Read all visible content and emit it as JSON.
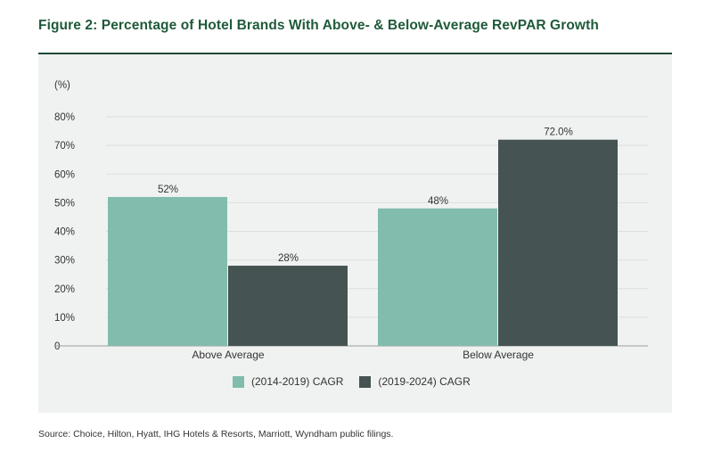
{
  "title": "Figure 2: Percentage of Hotel Brands With Above- & Below-Average RevPAR Growth",
  "source": "Source: Choice, Hilton, Hyatt, IHG Hotels & Resorts, Marriott, Wyndham public filings.",
  "colors": {
    "series_1": "#82bcad",
    "series_2": "#455352",
    "title": "#1f5a3a"
  },
  "chart_data": {
    "type": "bar",
    "title": "Figure 2: Percentage of Hotel Brands With Above- & Below-Average RevPAR Growth",
    "ylabel": "(%)",
    "xlabel": "",
    "ylim": [
      0,
      80
    ],
    "y_ticks": [
      "0",
      "10%",
      "20%",
      "30%",
      "40%",
      "50%",
      "60%",
      "70%",
      "80%"
    ],
    "y_tick_values": [
      0,
      10,
      20,
      30,
      40,
      50,
      60,
      70,
      80
    ],
    "categories": [
      "Above Average",
      "Below Average"
    ],
    "series": [
      {
        "name": "(2014-2019) CAGR",
        "values": [
          52,
          48
        ],
        "labels": [
          "52%",
          "48%"
        ],
        "color": "#82bcad"
      },
      {
        "name": "(2019-2024) CAGR",
        "values": [
          28,
          72
        ],
        "labels": [
          "28%",
          "72.0%"
        ],
        "color": "#455352"
      }
    ],
    "grid": true,
    "legend_position": "bottom-center"
  }
}
